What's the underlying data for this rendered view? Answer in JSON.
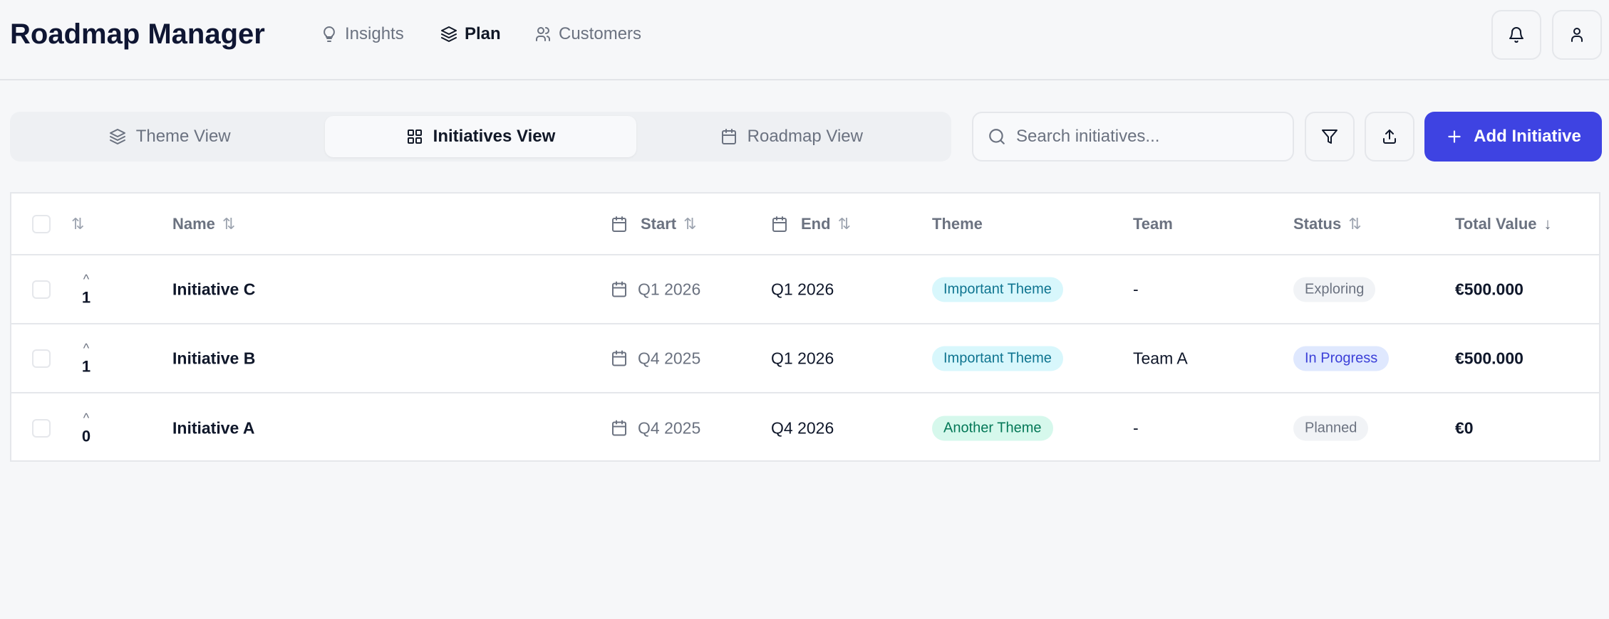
{
  "header": {
    "title": "Roadmap Manager",
    "nav": [
      {
        "label": "Insights",
        "icon": "lightbulb-icon"
      },
      {
        "label": "Plan",
        "icon": "layers-icon",
        "active": true
      },
      {
        "label": "Customers",
        "icon": "users-icon"
      }
    ]
  },
  "views": {
    "tabs": [
      {
        "label": "Theme View",
        "icon": "layers-icon"
      },
      {
        "label": "Initiatives View",
        "icon": "grid-icon",
        "active": true
      },
      {
        "label": "Roadmap View",
        "icon": "calendar-icon"
      }
    ]
  },
  "toolbar": {
    "search_placeholder": "Search initiatives...",
    "search_value": "",
    "add_label": "Add Initiative"
  },
  "colors": {
    "accent": "#3e43e2"
  },
  "table": {
    "columns": {
      "name": "Name",
      "start": "Start",
      "end": "End",
      "theme": "Theme",
      "team": "Team",
      "status": "Status",
      "total": "Total Value"
    },
    "rows": [
      {
        "votes": "1",
        "name": "Initiative C",
        "start": "Q1 2026",
        "end": "Q1 2026",
        "theme": "Important Theme",
        "theme_kind": "cyan",
        "team": "-",
        "status": "Exploring",
        "status_kind": "gray",
        "total": "€500.000"
      },
      {
        "votes": "1",
        "name": "Initiative B",
        "start": "Q4 2025",
        "end": "Q1 2026",
        "theme": "Important Theme",
        "theme_kind": "cyan",
        "team": "Team A",
        "status": "In Progress",
        "status_kind": "blue",
        "total": "€500.000"
      },
      {
        "votes": "0",
        "name": "Initiative A",
        "start": "Q4 2025",
        "end": "Q4 2026",
        "theme": "Another Theme",
        "theme_kind": "green",
        "team": "-",
        "status": "Planned",
        "status_kind": "gray",
        "total": "€0"
      }
    ]
  }
}
